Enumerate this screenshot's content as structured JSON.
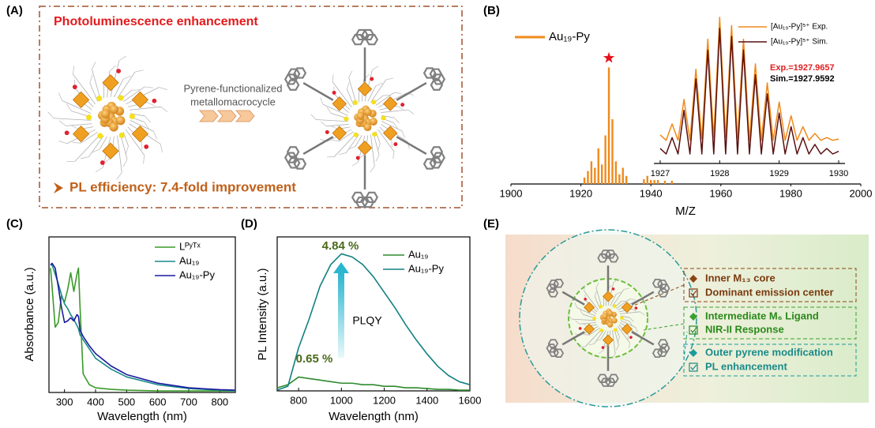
{
  "panels": [
    "(A)",
    "(B)",
    "(C)",
    "(D)",
    "(E)"
  ],
  "panel_a": {
    "title": "Photoluminescence enhancement",
    "arrow_text": [
      "Pyrene-functionalized",
      "metallomacrocycle"
    ],
    "efficiency": "PL efficiency:  7.4-fold improvement"
  },
  "panel_e": {
    "labels": [
      "Inner M₁₃ core",
      "Dominant emission center",
      "Intermediate M₆ Ligand",
      "NIR-II Response",
      "Outer pyrene modification",
      "PL enhancement"
    ]
  },
  "chart_data": [
    {
      "type": "bar",
      "x": [
        1921,
        1922,
        1923,
        1924,
        1925,
        1926,
        1927,
        1928,
        1929,
        1930,
        1931,
        1932,
        1933,
        1938,
        1939,
        1940,
        1941,
        1942,
        1944,
        1946
      ],
      "series": [
        {
          "name": "Au₁₉-Py",
          "color": "#f08a1c",
          "values": [
            4,
            8,
            14,
            10,
            22,
            12,
            30,
            72,
            40,
            14,
            6,
            10,
            5,
            3,
            5,
            8,
            4,
            3,
            2,
            2
          ]
        }
      ],
      "xlim": [
        1900,
        2000
      ],
      "xticks": [
        1900,
        1920,
        1940,
        1960,
        1980,
        2000
      ],
      "ylim": [
        0,
        100
      ],
      "xlabel": "M/Z"
    },
    {
      "type": "line",
      "x": [
        1927,
        1927.1,
        1927.2,
        1927.3,
        1927.4,
        1927.5,
        1927.6,
        1927.7,
        1927.8,
        1927.9,
        1928,
        1928.1,
        1928.2,
        1928.3,
        1928.4,
        1928.5,
        1928.6,
        1928.7,
        1928.8,
        1928.9,
        1929,
        1929.1,
        1929.2,
        1929.3,
        1929.4,
        1929.5,
        1929.6,
        1929.7,
        1929.8,
        1929.9,
        1930
      ],
      "series": [
        {
          "name": "[Au₁₉-Py]⁵⁺ Exp.",
          "color": "#f08a1c",
          "values": [
            14,
            10,
            22,
            10,
            40,
            10,
            62,
            11,
            84,
            12,
            100,
            12,
            94,
            11,
            84,
            10,
            66,
            10,
            52,
            10,
            38,
            10,
            28,
            10,
            20,
            10,
            15,
            10,
            12,
            10,
            11
          ]
        },
        {
          "name": "[Au₁₉-Py]⁵⁺ Sim.",
          "color": "#5a1010",
          "values": [
            4,
            0,
            12,
            0,
            32,
            0,
            55,
            0,
            76,
            0,
            92,
            0,
            86,
            0,
            76,
            0,
            58,
            0,
            44,
            0,
            30,
            0,
            20,
            0,
            12,
            0,
            7,
            0,
            4,
            0,
            2
          ]
        }
      ],
      "xlim": [
        1927,
        1930
      ],
      "xticks": [
        1927,
        1928,
        1929,
        1930
      ],
      "ylim": [
        0,
        100
      ],
      "annotations": [
        "Exp.=1927.9657",
        "Sim.=1927.9592"
      ]
    },
    {
      "type": "line",
      "x": [
        255,
        260,
        270,
        280,
        290,
        300,
        310,
        320,
        330,
        340,
        345,
        350,
        360,
        380,
        400,
        450,
        500,
        600,
        700,
        800,
        850
      ],
      "series": [
        {
          "name": "Lᴾʸᵀˣ",
          "color": "#3a9a2a",
          "values": [
            80,
            68,
            42,
            45,
            62,
            58,
            66,
            77,
            65,
            76,
            80,
            55,
            12,
            5,
            3,
            2,
            1.5,
            1,
            1,
            1,
            1
          ]
        },
        {
          "name": "Au₁₉",
          "color": "#1a8a8a",
          "values": [
            82,
            82,
            76,
            70,
            63,
            57,
            54,
            50,
            47,
            43,
            41,
            37,
            34,
            28,
            22,
            15,
            10,
            5,
            2.5,
            1.5,
            1.2
          ]
        },
        {
          "name": "Au₁₉-Py",
          "color": "#1a1aa0",
          "values": [
            82,
            83,
            80,
            68,
            55,
            45,
            46,
            48,
            46,
            50,
            49,
            40,
            36,
            30,
            25,
            17,
            11.5,
            6,
            3,
            1.8,
            1.5
          ]
        }
      ],
      "xlim": [
        250,
        850
      ],
      "xticks": [
        300,
        400,
        500,
        600,
        700,
        800
      ],
      "ylim": [
        0,
        100
      ],
      "xlabel": "Wavelength (nm)",
      "ylabel": "Absorbance (a.u.)"
    },
    {
      "type": "line",
      "x": [
        700,
        750,
        800,
        850,
        900,
        950,
        1000,
        1050,
        1100,
        1150,
        1200,
        1250,
        1300,
        1350,
        1400,
        1450,
        1500,
        1550,
        1600
      ],
      "series": [
        {
          "name": "Au₁₉",
          "color": "#2e8b2e",
          "values": [
            2,
            4,
            9,
            8,
            7,
            6,
            5,
            5,
            4,
            4,
            3,
            3,
            2,
            2,
            1.5,
            1,
            1,
            0.5,
            0.5
          ]
        },
        {
          "name": "Au₁₉-Py",
          "color": "#138080",
          "values": [
            0.5,
            3,
            28,
            47,
            68,
            82,
            89,
            87,
            82,
            74,
            64,
            54,
            43,
            33,
            24,
            16,
            10,
            6,
            4
          ]
        }
      ],
      "xlim": [
        700,
        1600
      ],
      "xticks": [
        800,
        1000,
        1200,
        1400,
        1600
      ],
      "ylim": [
        0,
        100
      ],
      "xlabel": "Wavelength (nm)",
      "ylabel": "PL Intensity (a.u.)",
      "annotations": [
        "4.84 %",
        "0.65 %",
        "PLQY"
      ]
    }
  ]
}
